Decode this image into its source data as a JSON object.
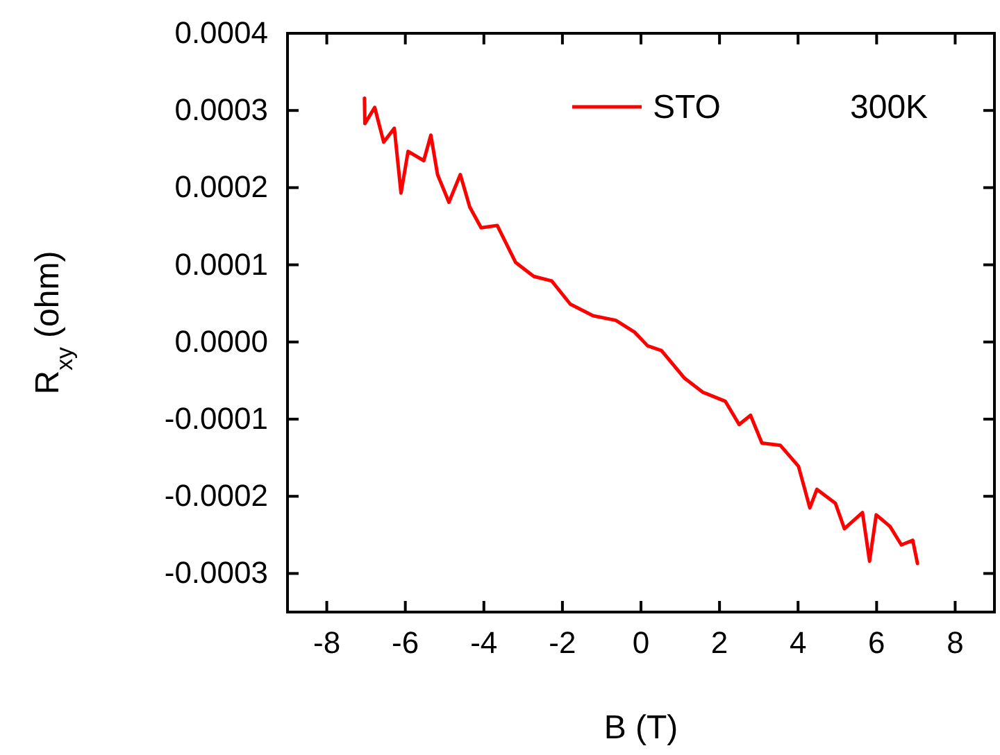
{
  "chart_data": {
    "type": "line",
    "xlabel": "B (T)",
    "ylabel": "R$_{xy}$ (ohm)",
    "xlim": [
      -9,
      9
    ],
    "xticks": [
      -8,
      -6,
      -4,
      -2,
      0,
      2,
      4,
      6,
      8
    ],
    "ylim": [
      -0.00035,
      0.0004
    ],
    "yticks": [
      {
        "value": -0.0003,
        "label": "-0.0003"
      },
      {
        "value": -0.0002,
        "label": "-0.0002"
      },
      {
        "value": -0.0001,
        "label": "-0.0001"
      },
      {
        "value": 0,
        "label": "0.0000"
      },
      {
        "value": 0.0001,
        "label": "0.0001"
      },
      {
        "value": 0.0002,
        "label": "0.0002"
      },
      {
        "value": 0.0003,
        "label": "0.0003"
      },
      {
        "value": 0.0004,
        "label": "0.0004"
      }
    ],
    "grid": false,
    "legend": "top right",
    "annotations": [
      "300K"
    ],
    "series": [
      {
        "name": "STO",
        "color": "#ff0000",
        "x": [
          -7.04,
          -7.03,
          -6.78,
          -6.55,
          -6.28,
          -6.11,
          -5.93,
          -5.53,
          -5.35,
          -5.18,
          -4.89,
          -4.6,
          -4.36,
          -4.07,
          -3.66,
          -3.19,
          -2.73,
          -2.27,
          -1.8,
          -1.22,
          -0.64,
          -0.17,
          0.17,
          0.52,
          1.11,
          1.57,
          2.15,
          2.5,
          2.79,
          3.08,
          3.55,
          4.01,
          4.3,
          4.48,
          4.95,
          5.18,
          5.64,
          5.82,
          5.99,
          6.34,
          6.63,
          6.92,
          7.04
        ],
        "values": [
          0.000316,
          0.000283,
          0.000304,
          0.000259,
          0.000277,
          0.000193,
          0.000247,
          0.000235,
          0.000268,
          0.000217,
          0.000181,
          0.000217,
          0.000175,
          0.000148,
          0.000151,
          0.000103,
          8.5e-05,
          7.9e-05,
          4.9e-05,
          3.4e-05,
          2.8e-05,
          1.3e-05,
          -5e-06,
          -1.1e-05,
          -4.7e-05,
          -6.5e-05,
          -7.7e-05,
          -0.000107,
          -9.5e-05,
          -0.000131,
          -0.000134,
          -0.000161,
          -0.000215,
          -0.000191,
          -0.000209,
          -0.000242,
          -0.000221,
          -0.000284,
          -0.000224,
          -0.000239,
          -0.000263,
          -0.000257,
          -0.000287
        ]
      }
    ]
  }
}
